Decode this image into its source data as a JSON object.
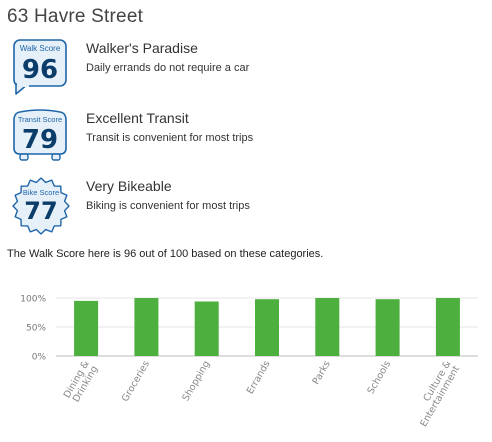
{
  "address": "63 Havre Street",
  "scores": [
    {
      "id": "walk",
      "badge_label": "Walk Score",
      "value": "96",
      "title": "Walker's Paradise",
      "description": "Daily errands do not require a car"
    },
    {
      "id": "transit",
      "badge_label": "Transit Score",
      "value": "79",
      "title": "Excellent Transit",
      "description": "Transit is convenient for most trips"
    },
    {
      "id": "bike",
      "badge_label": "Bike Score",
      "value": "77",
      "title": "Very Bikeable",
      "description": "Biking is convenient for most trips"
    }
  ],
  "colors": {
    "badge_blue": "#1f66a8",
    "badge_fill": "#e6f0f9",
    "number_blue": "#0b3d6b",
    "bar_green": "#4caf3e"
  },
  "summary_text": "The Walk Score here is 96 out of 100 based on these categories.",
  "chart_data": {
    "type": "bar",
    "categories": [
      "Dining & Drinking",
      "Groceries",
      "Shopping",
      "Errands",
      "Parks",
      "Schools",
      "Culture & Entertainment"
    ],
    "category_lines": [
      [
        "Dining &",
        "Drinking"
      ],
      [
        "Groceries"
      ],
      [
        "Shopping"
      ],
      [
        "Errands"
      ],
      [
        "Parks"
      ],
      [
        "Schools"
      ],
      [
        "Culture &",
        "Entertainment"
      ]
    ],
    "values": [
      95,
      100,
      94,
      98,
      100,
      98,
      100
    ],
    "ytick_labels": [
      "100%",
      "50%",
      "0%"
    ],
    "ytick_values": [
      100,
      50,
      0
    ],
    "ylim": [
      0,
      100
    ],
    "grid": true
  }
}
